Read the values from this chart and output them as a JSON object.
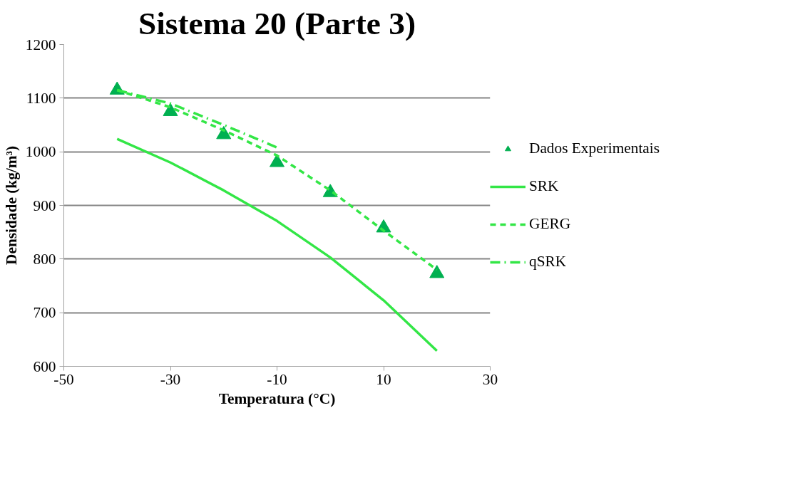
{
  "chart_data": {
    "type": "line",
    "title": "Sistema 20 (Parte 3)",
    "xlabel": "Temperatura (°C)",
    "ylabel": "Densidade (kg/m³)",
    "x": [
      -40,
      -30,
      -20,
      -10,
      0,
      10,
      20
    ],
    "xlim": [
      -50,
      30
    ],
    "xticks": [
      -50,
      -30,
      -10,
      10,
      30
    ],
    "ylim": [
      600,
      1200
    ],
    "yticks": [
      600,
      700,
      800,
      900,
      1000,
      1100,
      1200
    ],
    "grid": "y",
    "legend": "right",
    "series": [
      {
        "name": "Dados Experimentais",
        "type": "scatter",
        "marker": "triangle",
        "color": "#00b050",
        "values": [
          1115,
          1075,
          1032,
          980,
          924,
          858,
          773
        ]
      },
      {
        "name": "SRK",
        "line_style": "solid",
        "color": "#33e646",
        "values": [
          1024,
          980,
          928,
          871,
          803,
          723,
          629
        ]
      },
      {
        "name": "GERG",
        "line_style": "dashed",
        "color": "#33e646",
        "values": [
          1115,
          1083,
          1040,
          993,
          928,
          853,
          780
        ]
      },
      {
        "name": "qSRK",
        "line_style": "dashdot",
        "color": "#33e646",
        "values": [
          1115,
          1090,
          1050,
          1008,
          null,
          null,
          null
        ]
      }
    ]
  }
}
